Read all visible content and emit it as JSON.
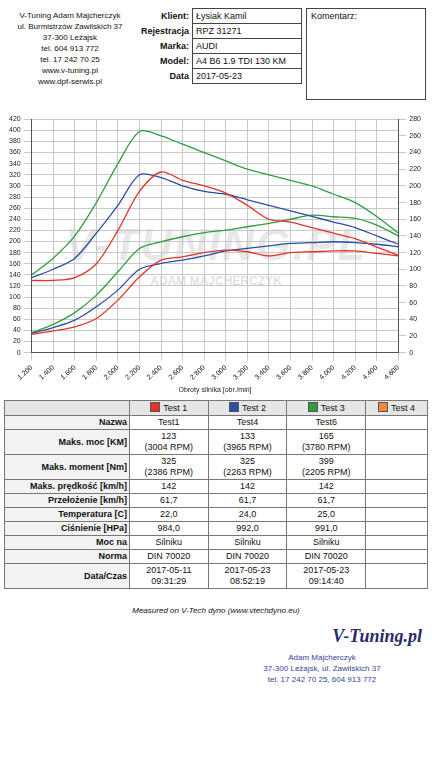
{
  "header": {
    "company": [
      "V-Tuning Adam Majcherczyk",
      "ul. Burmistrzów Zawilskich 37",
      "37-300 Leżajsk",
      "tel. 604 913 772",
      "tel. 17 242 70 25",
      "www.v-tuning.pl",
      "www.dpf-serwis.pl"
    ],
    "client": [
      {
        "label": "Klient:",
        "value": "Łysiak Kamil"
      },
      {
        "label": "Rejestracja",
        "value": "RPZ 31271"
      },
      {
        "label": "Marka:",
        "value": "AUDI"
      },
      {
        "label": "Model:",
        "value": "A4 B6 1.9 TDI 130 KM"
      },
      {
        "label": "Data",
        "value": "2017-05-23"
      }
    ],
    "comment_label": "Komentarz:"
  },
  "watermark": [
    "V-TUNING.PL",
    "ADAM MAJCHERCZYK"
  ],
  "chart_data": {
    "type": "line",
    "x_label": "Obroty silnika [obr./min]",
    "x": [
      1200,
      1400,
      1600,
      1800,
      2000,
      2200,
      2400,
      2600,
      2800,
      3000,
      3200,
      3400,
      3600,
      3800,
      4000,
      4200,
      4400,
      4600
    ],
    "xlim": [
      1200,
      4600
    ],
    "xticks": [
      {
        "value": 1200,
        "label": "1.200"
      },
      {
        "value": 1400,
        "label": "1.400"
      },
      {
        "value": 1600,
        "label": "1.600"
      },
      {
        "value": 1800,
        "label": "1.800"
      },
      {
        "value": 2000,
        "label": "2.000"
      },
      {
        "value": 2200,
        "label": "2.200"
      },
      {
        "value": 2400,
        "label": "2.400"
      },
      {
        "value": 2600,
        "label": "2.600"
      },
      {
        "value": 2800,
        "label": "2.800"
      },
      {
        "value": 3000,
        "label": "3.000"
      },
      {
        "value": 3200,
        "label": "3.200"
      },
      {
        "value": 3400,
        "label": "3.400"
      },
      {
        "value": 3600,
        "label": "3.600"
      },
      {
        "value": 3800,
        "label": "3.800"
      },
      {
        "value": 4000,
        "label": "4.000"
      },
      {
        "value": 4200,
        "label": "4.200"
      },
      {
        "value": 4400,
        "label": "4.400"
      },
      {
        "value": 4600,
        "label": "4.600"
      }
    ],
    "ylim": [
      0,
      420
    ],
    "yticks": [
      0,
      20,
      40,
      60,
      80,
      100,
      120,
      140,
      160,
      180,
      200,
      220,
      240,
      260,
      280,
      300,
      320,
      340,
      360,
      380,
      400,
      420
    ],
    "y2lim": [
      0,
      280
    ],
    "y2ticks": [
      0,
      20,
      40,
      60,
      80,
      100,
      120,
      140,
      160,
      180,
      200,
      220,
      240,
      260,
      280
    ],
    "grid": true,
    "series": [
      {
        "name": "Test 1",
        "color": "#e3342a",
        "values": [
          130,
          130,
          135,
          160,
          220,
          290,
          325,
          310,
          300,
          287,
          265,
          240,
          235,
          225,
          215,
          205,
          190,
          175
        ]
      },
      {
        "name": "Test 2",
        "color": "#2b4ea6",
        "values": [
          135,
          150,
          170,
          215,
          265,
          320,
          315,
          300,
          290,
          285,
          275,
          265,
          255,
          245,
          235,
          225,
          210,
          195
        ]
      },
      {
        "name": "Test 3",
        "color": "#2f9e3f",
        "values": [
          140,
          170,
          210,
          270,
          340,
          398,
          390,
          375,
          360,
          345,
          330,
          320,
          310,
          300,
          285,
          270,
          245,
          215
        ]
      },
      {
        "name": "Test 1",
        "color": "#e3342a",
        "axis": "y2",
        "values": [
          22,
          26,
          31,
          41,
          63,
          91,
          111,
          115,
          120,
          123,
          121,
          116,
          120,
          121,
          122,
          122,
          119,
          116
        ]
      },
      {
        "name": "Test 2",
        "color": "#2b4ea6",
        "axis": "y2",
        "values": [
          23,
          30,
          39,
          55,
          75,
          100,
          107,
          111,
          116,
          122,
          125,
          128,
          131,
          132,
          133,
          132,
          130,
          127
        ]
      },
      {
        "name": "Test 3",
        "color": "#2f9e3f",
        "axis": "y2",
        "values": [
          24,
          34,
          48,
          69,
          97,
          125,
          133,
          139,
          144,
          147,
          151,
          155,
          160,
          165,
          163,
          161,
          153,
          140
        ]
      }
    ]
  },
  "table": {
    "columns": [
      {
        "name": "Test 1",
        "color": "#e3342a"
      },
      {
        "name": "Test 2",
        "color": "#2b4ea6"
      },
      {
        "name": "Test 3",
        "color": "#2f9e3f"
      },
      {
        "name": "Test 4",
        "color": "#f08a3c"
      }
    ],
    "rows": [
      [
        "Nazwa",
        "Test1",
        "Test4",
        "Test6",
        null
      ],
      [
        "Maks. moc [KM]",
        "123\n(3004 RPM)",
        "133\n(3965 RPM)",
        "165\n(3780 RPM)",
        null
      ],
      [
        "Maks. moment [Nm]",
        "325\n(2386 RPM)",
        "325\n(2263 RPM)",
        "399\n(2205 RPM)",
        null
      ],
      [
        "Maks. prędkość [km/h]",
        "142",
        "142",
        "142",
        null
      ],
      [
        "Przełożenie [km/h]",
        "61,7",
        "61,7",
        "61,7",
        null
      ],
      [
        "Temperatura [C]",
        "22,0",
        "24,0",
        "25,0",
        null
      ],
      [
        "Ciśnienie [HPa]",
        "984,0",
        "992,0",
        "991,0",
        null
      ],
      [
        "Moc na",
        "Silniku",
        "Silniku",
        "Silniku",
        null
      ],
      [
        "Norma",
        "DIN 70020",
        "DIN 70020",
        "DIN 70020",
        null
      ],
      [
        "Data/Czas",
        "2017-05-11\n09:31:29",
        "2017-05-23\n08:52:19",
        "2017-05-23\n09:14:40",
        null
      ]
    ]
  },
  "footer": {
    "measured": "Measured on V-Tech dyno (www.vtechdyno.eu)",
    "brand": "V-Tuning.pl",
    "stamp": [
      "Adam Majcherczyk",
      "37-300 Leżajsk, ul. Zawilskich 37",
      "tel. 17 242 70 25, 604 913 772"
    ]
  }
}
